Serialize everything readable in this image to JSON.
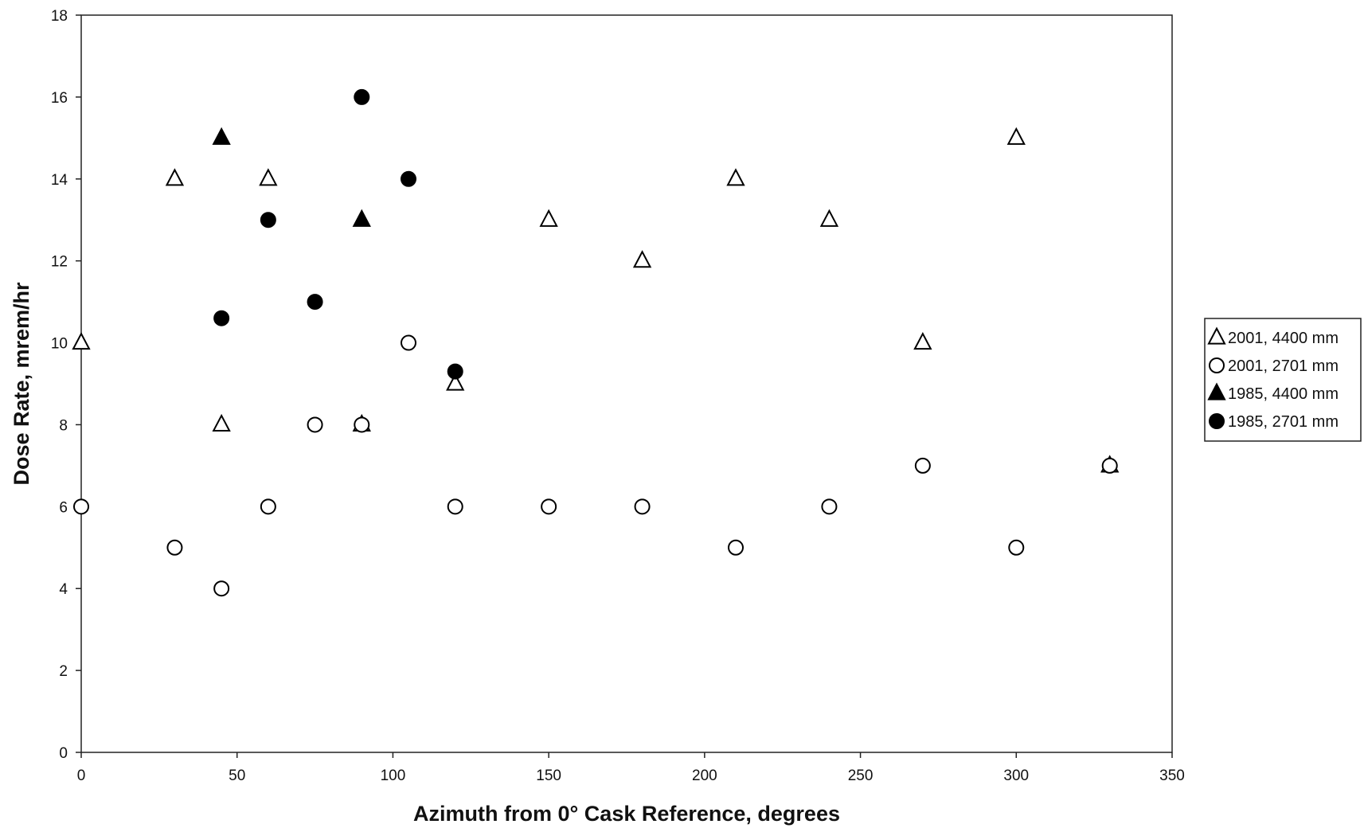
{
  "chart_data": {
    "type": "scatter",
    "title": "",
    "xlabel": "Azimuth from 0° Cask Reference, degrees",
    "ylabel": "Dose Rate, mrem/hr",
    "xlim": [
      0,
      350
    ],
    "ylim": [
      0,
      18
    ],
    "xticks": [
      0,
      50,
      100,
      150,
      200,
      250,
      300,
      350
    ],
    "yticks": [
      0,
      2,
      4,
      6,
      8,
      10,
      12,
      14,
      16,
      18
    ],
    "grid": false,
    "legend_position": "right",
    "series": [
      {
        "name": "2001, 4400 mm",
        "marker": "open-triangle",
        "points": [
          {
            "x": 0,
            "y": 10
          },
          {
            "x": 30,
            "y": 14
          },
          {
            "x": 45,
            "y": 8
          },
          {
            "x": 60,
            "y": 14
          },
          {
            "x": 90,
            "y": 8
          },
          {
            "x": 120,
            "y": 9
          },
          {
            "x": 150,
            "y": 13
          },
          {
            "x": 180,
            "y": 12
          },
          {
            "x": 210,
            "y": 14
          },
          {
            "x": 240,
            "y": 13
          },
          {
            "x": 270,
            "y": 10
          },
          {
            "x": 300,
            "y": 15
          },
          {
            "x": 330,
            "y": 7
          }
        ]
      },
      {
        "name": "2001, 2701 mm",
        "marker": "open-circle",
        "points": [
          {
            "x": 0,
            "y": 6
          },
          {
            "x": 30,
            "y": 5
          },
          {
            "x": 45,
            "y": 4
          },
          {
            "x": 60,
            "y": 6
          },
          {
            "x": 75,
            "y": 8
          },
          {
            "x": 90,
            "y": 8
          },
          {
            "x": 105,
            "y": 10
          },
          {
            "x": 120,
            "y": 6
          },
          {
            "x": 150,
            "y": 6
          },
          {
            "x": 180,
            "y": 6
          },
          {
            "x": 210,
            "y": 5
          },
          {
            "x": 240,
            "y": 6
          },
          {
            "x": 270,
            "y": 7
          },
          {
            "x": 300,
            "y": 5
          },
          {
            "x": 330,
            "y": 7
          }
        ]
      },
      {
        "name": "1985, 4400 mm",
        "marker": "filled-triangle",
        "points": [
          {
            "x": 45,
            "y": 15
          },
          {
            "x": 90,
            "y": 13
          }
        ]
      },
      {
        "name": "1985, 2701 mm",
        "marker": "filled-circle",
        "points": [
          {
            "x": 45,
            "y": 10.6
          },
          {
            "x": 60,
            "y": 13
          },
          {
            "x": 75,
            "y": 11
          },
          {
            "x": 90,
            "y": 16
          },
          {
            "x": 105,
            "y": 14
          },
          {
            "x": 120,
            "y": 9.3
          }
        ]
      }
    ]
  }
}
